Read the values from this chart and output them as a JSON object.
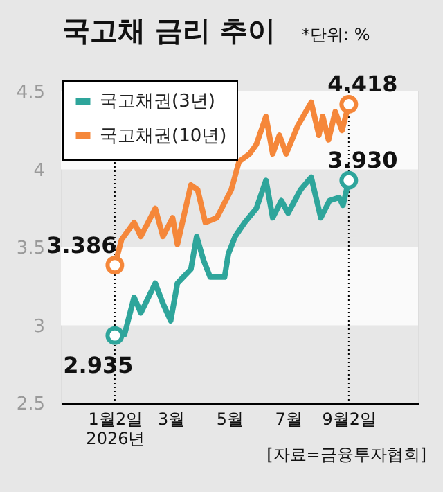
{
  "chart_data": {
    "type": "line",
    "title": "국고채 금리 추이",
    "x": [
      "2026-01-02",
      "2026-01-09",
      "2026-01-22",
      "2026-01-29",
      "2026-02-13",
      "2026-02-21",
      "2026-03-03",
      "2026-03-08",
      "2026-03-22",
      "2026-03-29",
      "2026-04-06",
      "2026-04-18",
      "2026-04-23",
      "2026-05-03",
      "2026-05-11",
      "2026-05-22",
      "2026-05-29",
      "2026-06-08",
      "2026-06-15",
      "2026-06-22",
      "2026-06-29",
      "2026-07-11",
      "2026-07-25",
      "2026-08-02",
      "2026-08-06",
      "2026-08-12",
      "2026-08-19",
      "2026-08-26",
      "2026-09-02"
    ],
    "series": [
      {
        "name": "국고채권(3년)",
        "color": "#2ea59b",
        "x": [
          "2026-01-02",
          "2026-01-12",
          "2026-01-22",
          "2026-01-29",
          "2026-02-13",
          "2026-02-21",
          "2026-03-01",
          "2026-03-08",
          "2026-03-22",
          "2026-03-28",
          "2026-04-04",
          "2026-04-11",
          "2026-04-26",
          "2026-04-30",
          "2026-05-07",
          "2026-05-17",
          "2026-05-29",
          "2026-06-08",
          "2026-06-15",
          "2026-06-24",
          "2026-07-01",
          "2026-07-14",
          "2026-07-25",
          "2026-08-04",
          "2026-08-13",
          "2026-08-23",
          "2026-08-27",
          "2026-09-02"
        ],
        "values": [
          2.935,
          2.94,
          3.18,
          3.08,
          3.27,
          3.14,
          3.03,
          3.27,
          3.36,
          3.57,
          3.42,
          3.31,
          3.31,
          3.46,
          3.57,
          3.66,
          3.75,
          3.93,
          3.69,
          3.8,
          3.72,
          3.87,
          3.95,
          3.69,
          3.8,
          3.82,
          3.77,
          3.93
        ]
      },
      {
        "name": "국고채권(10년)",
        "color": "#f5873a",
        "values": [
          3.386,
          3.55,
          3.66,
          3.57,
          3.75,
          3.57,
          3.69,
          3.52,
          3.9,
          3.87,
          3.66,
          3.69,
          3.75,
          3.87,
          4.05,
          4.1,
          4.16,
          4.34,
          4.1,
          4.22,
          4.1,
          4.28,
          4.43,
          4.22,
          4.34,
          4.19,
          4.37,
          4.25,
          4.418
        ]
      }
    ],
    "xlim": [
      "2025-11-07",
      "2026-11-13"
    ],
    "xticks": [
      {
        "value": "2026-01-02",
        "label": "1월2일\n2026년"
      },
      {
        "value": "2026-03-01",
        "label": "3월"
      },
      {
        "value": "2026-05-01",
        "label": "5월"
      },
      {
        "value": "2026-07-01",
        "label": "7월"
      },
      {
        "value": "2026-09-02",
        "label": "9월2일"
      }
    ],
    "ylim": [
      2.5,
      4.5
    ],
    "yticks": [
      2.5,
      3,
      3.5,
      4,
      4.5
    ],
    "bands": [
      {
        "axis": "y",
        "from": 3,
        "to": 3.5,
        "color": "#fafafa"
      },
      {
        "axis": "y",
        "from": 4,
        "to": 4.5,
        "color": "#fafafa"
      }
    ],
    "ref_lines": [
      {
        "axis": "x",
        "value": "2026-01-02",
        "line_style": "dotted"
      },
      {
        "axis": "x",
        "value": "2026-09-02",
        "line_style": "dotted"
      }
    ],
    "annotations": [
      {
        "text": "3.386",
        "x": "2026-01-02",
        "y": 3.386
      },
      {
        "text": "2.935",
        "x": "2026-01-02",
        "y": 2.935
      },
      {
        "text": "4.418",
        "x": "2026-09-02",
        "y": 4.418
      },
      {
        "text": "3.930",
        "x": "2026-09-02",
        "y": 3.93
      },
      "*단위: %",
      "[자료=금융투자협회]"
    ],
    "legend": "top left",
    "grid": false,
    "marker": "none",
    "line_style": "solid"
  }
}
